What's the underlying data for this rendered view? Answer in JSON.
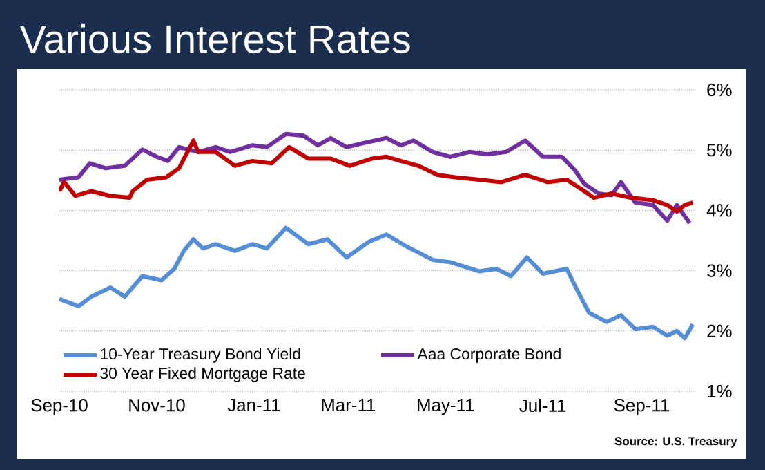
{
  "chart_data": {
    "type": "line",
    "title": "Various Interest Rates",
    "annotations": [
      "Source:  U.S. Treasury"
    ],
    "xlim": [
      "2010-09-01",
      "2011-10-05"
    ],
    "xticks": [
      {
        "value": "2010-09-01",
        "label": "Sep-10"
      },
      {
        "value": "2010-11-01",
        "label": "Nov-10"
      },
      {
        "value": "2011-01-01",
        "label": "Jan-11"
      },
      {
        "value": "2011-03-01",
        "label": "Mar-11"
      },
      {
        "value": "2011-05-01",
        "label": "May-11"
      },
      {
        "value": "2011-07-01",
        "label": "Jul-11"
      },
      {
        "value": "2011-09-01",
        "label": "Sep-11"
      }
    ],
    "ylim": [
      1,
      6
    ],
    "yticks": [
      {
        "value": 1,
        "label": "1%"
      },
      {
        "value": 2,
        "label": "2%"
      },
      {
        "value": 3,
        "label": "3%"
      },
      {
        "value": 4,
        "label": "4%"
      },
      {
        "value": 5,
        "label": "5%"
      },
      {
        "value": 6,
        "label": "6%"
      }
    ],
    "grid": "y",
    "legend": "bottom left",
    "marker": "none",
    "line_style": "solid",
    "series": [
      {
        "name": "10-Year Treasury Bond Yield",
        "color": "#558ed5",
        "x": [
          "2010-09-01",
          "2010-09-13",
          "2010-09-21",
          "2010-10-03",
          "2010-10-12",
          "2010-10-23",
          "2010-11-04",
          "2010-11-12",
          "2010-11-18",
          "2010-11-24",
          "2010-11-30",
          "2010-12-08",
          "2010-12-20",
          "2010-12-31",
          "2011-01-09",
          "2011-01-21",
          "2011-02-04",
          "2011-02-16",
          "2011-02-28",
          "2011-03-14",
          "2011-03-25",
          "2011-04-06",
          "2011-04-23",
          "2011-05-04",
          "2011-05-22",
          "2011-06-02",
          "2011-06-11",
          "2011-06-21",
          "2011-07-01",
          "2011-07-16",
          "2011-07-21",
          "2011-07-30",
          "2011-08-10",
          "2011-08-19",
          "2011-08-28",
          "2011-09-08",
          "2011-09-17",
          "2011-09-23",
          "2011-09-28",
          "2011-10-03"
        ],
        "values": [
          2.53,
          2.41,
          2.57,
          2.72,
          2.57,
          2.91,
          2.84,
          3.03,
          3.33,
          3.52,
          3.37,
          3.44,
          3.33,
          3.44,
          3.37,
          3.71,
          3.44,
          3.52,
          3.22,
          3.48,
          3.6,
          3.41,
          3.18,
          3.14,
          2.99,
          3.03,
          2.91,
          3.22,
          2.95,
          3.03,
          2.76,
          2.3,
          2.15,
          2.26,
          2.03,
          2.07,
          1.92,
          2.0,
          1.88,
          2.11
        ]
      },
      {
        "name": "Aaa Corporate Bond",
        "color": "#7030a0",
        "x": [
          "2010-09-01",
          "2010-09-13",
          "2010-09-20",
          "2010-09-30",
          "2010-10-12",
          "2010-10-23",
          "2010-11-01",
          "2010-11-08",
          "2010-11-15",
          "2010-11-27",
          "2010-12-08",
          "2010-12-17",
          "2010-12-31",
          "2011-01-09",
          "2011-01-21",
          "2011-02-01",
          "2011-02-10",
          "2011-02-18",
          "2011-02-28",
          "2011-03-11",
          "2011-03-25",
          "2011-04-03",
          "2011-04-11",
          "2011-04-23",
          "2011-05-04",
          "2011-05-16",
          "2011-05-27",
          "2011-06-08",
          "2011-06-20",
          "2011-07-01",
          "2011-07-13",
          "2011-07-21",
          "2011-07-27",
          "2011-08-05",
          "2011-08-13",
          "2011-08-19",
          "2011-08-28",
          "2011-09-08",
          "2011-09-17",
          "2011-09-23",
          "2011-10-01"
        ],
        "values": [
          4.51,
          4.55,
          4.78,
          4.7,
          4.74,
          5.01,
          4.89,
          4.82,
          5.05,
          4.97,
          5.05,
          4.97,
          5.08,
          5.05,
          5.27,
          5.24,
          5.08,
          5.2,
          5.05,
          5.12,
          5.2,
          5.08,
          5.16,
          4.97,
          4.89,
          4.97,
          4.93,
          4.97,
          5.16,
          4.89,
          4.89,
          4.67,
          4.44,
          4.28,
          4.25,
          4.47,
          4.13,
          4.09,
          3.83,
          4.09,
          3.79
        ]
      },
      {
        "name": "30 Year Fixed Mortgage Rate",
        "color": "#c00000",
        "x": [
          "2010-09-01",
          "2010-09-04",
          "2010-09-11",
          "2010-09-21",
          "2010-10-03",
          "2010-10-15",
          "2010-10-17",
          "2010-10-26",
          "2010-11-07",
          "2010-11-15",
          "2010-11-24",
          "2010-11-27",
          "2010-12-08",
          "2010-12-20",
          "2010-12-31",
          "2011-01-12",
          "2011-01-23",
          "2011-02-04",
          "2011-02-18",
          "2011-03-02",
          "2011-03-16",
          "2011-03-25",
          "2011-04-03",
          "2011-04-14",
          "2011-04-26",
          "2011-05-07",
          "2011-05-22",
          "2011-06-05",
          "2011-06-20",
          "2011-07-04",
          "2011-07-16",
          "2011-07-27",
          "2011-08-02",
          "2011-08-13",
          "2011-08-25",
          "2011-09-08",
          "2011-09-17",
          "2011-09-23",
          "2011-09-28",
          "2011-10-03"
        ],
        "values": [
          4.32,
          4.47,
          4.24,
          4.32,
          4.24,
          4.21,
          4.32,
          4.51,
          4.55,
          4.7,
          5.16,
          4.97,
          4.97,
          4.74,
          4.82,
          4.78,
          5.05,
          4.86,
          4.86,
          4.74,
          4.86,
          4.89,
          4.82,
          4.74,
          4.59,
          4.55,
          4.51,
          4.47,
          4.59,
          4.47,
          4.51,
          4.32,
          4.21,
          4.28,
          4.21,
          4.17,
          4.09,
          3.98,
          4.09,
          4.13
        ]
      }
    ]
  }
}
